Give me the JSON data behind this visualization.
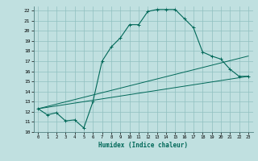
{
  "title": "",
  "xlabel": "Humidex (Indice chaleur)",
  "ylabel": "",
  "bg_color": "#c0e0e0",
  "grid_color": "#90c0c0",
  "line_color": "#006858",
  "xlim": [
    -0.5,
    23.5
  ],
  "ylim": [
    10,
    22.4
  ],
  "xticks": [
    0,
    1,
    2,
    3,
    4,
    5,
    6,
    7,
    8,
    9,
    10,
    11,
    12,
    13,
    14,
    15,
    16,
    17,
    18,
    19,
    20,
    21,
    22,
    23
  ],
  "yticks": [
    10,
    11,
    12,
    13,
    14,
    15,
    16,
    17,
    18,
    19,
    20,
    21,
    22
  ],
  "line1_x": [
    0,
    1,
    2,
    3,
    4,
    5,
    6,
    7,
    8,
    9,
    10,
    11,
    12,
    13,
    14,
    15,
    16,
    17,
    18,
    19,
    20,
    21,
    22,
    23
  ],
  "line1_y": [
    12.3,
    11.7,
    11.9,
    11.1,
    11.2,
    10.4,
    13.0,
    17.0,
    18.4,
    19.3,
    20.6,
    20.6,
    21.9,
    22.1,
    22.1,
    22.1,
    21.2,
    20.3,
    17.9,
    17.5,
    17.2,
    16.2,
    15.5,
    15.5
  ],
  "line2_x": [
    0,
    23
  ],
  "line2_y": [
    12.3,
    15.5
  ],
  "line3_x": [
    0,
    23
  ],
  "line3_y": [
    12.3,
    17.5
  ]
}
